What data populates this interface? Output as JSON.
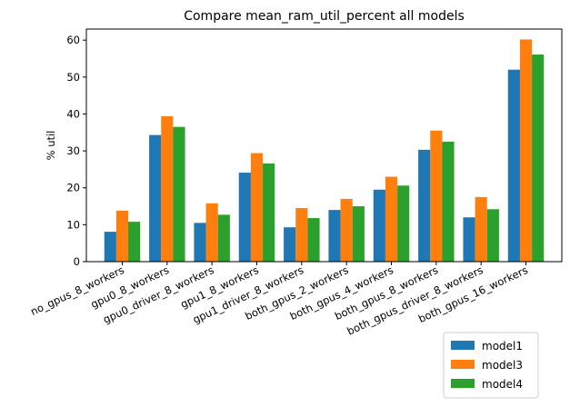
{
  "chart_data": {
    "type": "bar",
    "title": "Compare mean_ram_util_percent all models",
    "xlabel": "",
    "ylabel": "% util",
    "ylim": [
      0,
      63
    ],
    "yticks": [
      0,
      10,
      20,
      30,
      40,
      50,
      60
    ],
    "grid": false,
    "legend_position": "below-right",
    "categories": [
      "no_gpus_8_workers",
      "gpu0_8_workers",
      "gpu0_driver_8_workers",
      "gpu1_8_workers",
      "gpu1_driver_8_workers",
      "both_gpus_2_workers",
      "both_gpus_4_workers",
      "both_gpus_8_workers",
      "both_gpus_driver_8_workers",
      "both_gpus_16_workers"
    ],
    "series": [
      {
        "name": "model1",
        "color": "#1f77b4",
        "values": [
          8.1,
          34.3,
          10.5,
          24.1,
          9.3,
          14.0,
          19.5,
          30.3,
          12.0,
          52.0
        ]
      },
      {
        "name": "model3",
        "color": "#ff7f0e",
        "values": [
          13.8,
          39.4,
          15.8,
          29.4,
          14.5,
          17.0,
          23.0,
          35.5,
          17.5,
          60.2
        ]
      },
      {
        "name": "model4",
        "color": "#2ca02c",
        "values": [
          10.8,
          36.5,
          12.7,
          26.6,
          11.8,
          15.0,
          20.6,
          32.5,
          14.2,
          56.1
        ]
      }
    ]
  }
}
